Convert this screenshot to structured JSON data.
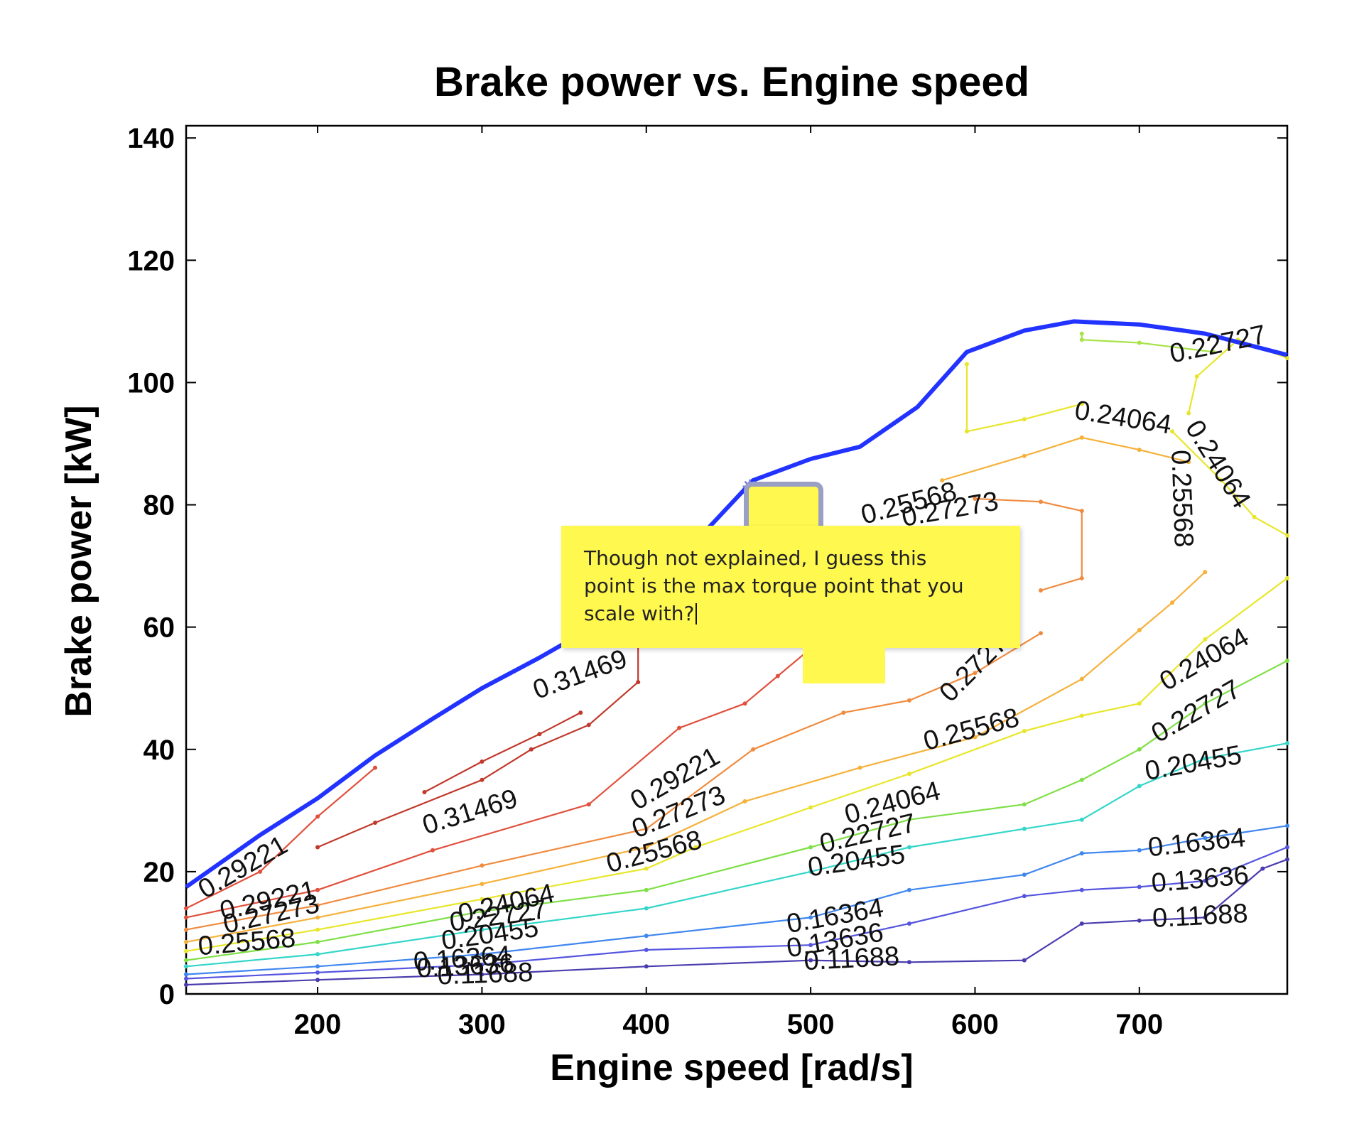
{
  "chart_data": {
    "type": "line",
    "title": "Brake power vs. Engine speed",
    "xlabel": "Engine speed [rad/s]",
    "ylabel": "Brake power [kW]",
    "xlim": [
      120,
      790
    ],
    "ylim": [
      0,
      142
    ],
    "xticks": [
      200,
      300,
      400,
      500,
      600,
      700
    ],
    "yticks": [
      0,
      20,
      40,
      60,
      80,
      100,
      120,
      140
    ],
    "grid": false,
    "legend": "none",
    "max_power_curve": {
      "color": "#2233ff",
      "x": [
        120,
        165,
        200,
        235,
        270,
        300,
        335,
        400,
        430,
        465,
        500,
        530,
        565,
        595,
        630,
        660,
        700,
        740,
        790
      ],
      "y": [
        17.5,
        26,
        32,
        39,
        45,
        50,
        55,
        65,
        74,
        84,
        87.5,
        89.5,
        96,
        105,
        108.5,
        110,
        109.5,
        108,
        104.5
      ]
    },
    "marked_point": {
      "x": 463,
      "y": 83,
      "color": "#7777ee"
    },
    "contours": [
      {
        "level": "0.11688",
        "color": "#4a3cae",
        "x": [
          120,
          200,
          300,
          400,
          500,
          560,
          630,
          665,
          700,
          740,
          775,
          790
        ],
        "y": [
          1.5,
          2.3,
          3.2,
          4.5,
          5.5,
          5.2,
          5.5,
          11.5,
          12,
          12.5,
          20.5,
          22
        ]
      },
      {
        "level": "0.13636",
        "color": "#5555e0",
        "x": [
          120,
          200,
          300,
          400,
          500,
          560,
          630,
          665,
          700,
          740,
          790
        ],
        "y": [
          2.5,
          3.5,
          4.8,
          7.2,
          8,
          11.5,
          16,
          17,
          17.5,
          18.5,
          24
        ]
      },
      {
        "level": "0.16364",
        "color": "#3f86ef",
        "x": [
          120,
          200,
          300,
          400,
          500,
          560,
          630,
          665,
          700,
          740,
          790
        ],
        "y": [
          3.2,
          4.5,
          6.5,
          9.5,
          12.5,
          17,
          19.5,
          23,
          23.5,
          25.5,
          27.5
        ]
      },
      {
        "level": "0.20455",
        "color": "#33d6c9",
        "x": [
          120,
          200,
          300,
          400,
          500,
          560,
          630,
          665,
          700,
          740,
          790
        ],
        "y": [
          4.5,
          6.5,
          10.5,
          14,
          20,
          24,
          27,
          28.5,
          34,
          38.5,
          41
        ]
      },
      {
        "level": "0.22727",
        "color": "#7fe046",
        "x": [
          120,
          200,
          300,
          400,
          500,
          560,
          630,
          665,
          700,
          740,
          790
        ],
        "y": [
          5.5,
          8.5,
          13.5,
          17,
          24,
          28.5,
          31,
          35,
          40,
          47.5,
          54.5
        ]
      },
      {
        "level": "0.24064",
        "color": "#e8e62a",
        "x": [
          120,
          200,
          300,
          400,
          430,
          500,
          560,
          630,
          665,
          700,
          740,
          790
        ],
        "y": [
          7,
          10.5,
          15.5,
          20.5,
          24,
          30.5,
          36,
          43,
          45.5,
          47.5,
          58,
          68
        ]
      },
      {
        "level": "0.25568",
        "color": "#f5b13a",
        "x": [
          120,
          200,
          300,
          400,
          460,
          530,
          600,
          665,
          700,
          720,
          740
        ],
        "y": [
          8.5,
          12.5,
          18,
          24,
          31.5,
          37,
          42,
          51.5,
          59.5,
          64,
          69
        ]
      },
      {
        "level": "0.27273",
        "color": "#f08b3f",
        "x": [
          120,
          200,
          300,
          400,
          465,
          520,
          560,
          600,
          640
        ],
        "y": [
          10.5,
          14.5,
          21,
          27,
          40,
          46,
          48,
          52.5,
          59
        ]
      },
      {
        "level": "0.29221",
        "color": "#e0503d",
        "x": [
          120,
          200,
          270,
          365,
          420,
          460,
          480,
          500
        ],
        "y": [
          12.5,
          17,
          23.5,
          31,
          43.5,
          47.5,
          52,
          56.5
        ]
      },
      {
        "level": "0.29221",
        "color": "#e0503d",
        "x": [
          120,
          165,
          200,
          235
        ],
        "y": [
          14,
          20,
          29,
          37
        ]
      },
      {
        "level": "0.31469",
        "color": "#c0392b",
        "x": [
          200,
          235,
          300,
          330,
          365,
          395,
          395
        ],
        "y": [
          24,
          28,
          35,
          40,
          44,
          51,
          60
        ]
      },
      {
        "level": "0.31469",
        "color": "#c0392b",
        "x": [
          265,
          300,
          335,
          360
        ],
        "y": [
          33,
          38,
          42.5,
          46
        ]
      },
      {
        "level": "0.27273",
        "color": "#f08b3f",
        "x": [
          600,
          640,
          665,
          665,
          640
        ],
        "y": [
          81,
          80.5,
          79,
          68,
          66
        ]
      },
      {
        "level": "0.25568",
        "color": "#f5b13a",
        "x": [
          580,
          630,
          665,
          700,
          730
        ],
        "y": [
          84,
          88,
          91,
          89,
          87
        ]
      },
      {
        "level": "0.24064",
        "color": "#e8e62a",
        "x": [
          595,
          595,
          630,
          665
        ],
        "y": [
          103,
          92,
          94,
          96.5
        ]
      },
      {
        "level": "0.22727",
        "color": "#a8e34a",
        "x": [
          665,
          665,
          700,
          745
        ],
        "y": [
          108,
          107,
          106.5,
          105
        ]
      },
      {
        "level": "0.24064",
        "color": "#e8e62a",
        "x": [
          720,
          750,
          770,
          790
        ],
        "y": [
          92,
          84,
          78,
          75
        ]
      },
      {
        "level": "0.24064",
        "color": "#e8e62a",
        "x": [
          730,
          735,
          760,
          790
        ],
        "y": [
          95,
          101,
          107,
          104
        ]
      }
    ],
    "contour_labels": [
      {
        "text": "0.29221",
        "x": 155,
        "y": 20.5,
        "angle": -30
      },
      {
        "text": "0.29221",
        "x": 170,
        "y": 15,
        "angle": -13
      },
      {
        "text": "0.27273",
        "x": 172,
        "y": 12.8,
        "angle": -13
      },
      {
        "text": "0.25568",
        "x": 157,
        "y": 8.2,
        "angle": -5
      },
      {
        "text": "0.31469",
        "x": 293,
        "y": 29.5,
        "angle": -17
      },
      {
        "text": "0.31469",
        "x": 360,
        "y": 52,
        "angle": -20
      },
      {
        "text": "0.29221",
        "x": 418,
        "y": 35,
        "angle": -30
      },
      {
        "text": "0.27273",
        "x": 420,
        "y": 29.5,
        "angle": -22
      },
      {
        "text": "0.25568",
        "x": 405,
        "y": 23,
        "angle": -15
      },
      {
        "text": "0.24064",
        "x": 315,
        "y": 14.5,
        "angle": -13
      },
      {
        "text": "0.22727",
        "x": 310,
        "y": 12.5,
        "angle": -8
      },
      {
        "text": "0.20455",
        "x": 305,
        "y": 9.5,
        "angle": -8
      },
      {
        "text": "0.16364",
        "x": 288,
        "y": 5.5,
        "angle": -4
      },
      {
        "text": "0.13636",
        "x": 290,
        "y": 4.3,
        "angle": -3
      },
      {
        "text": "0.11688",
        "x": 302,
        "y": 3,
        "angle": -2
      },
      {
        "text": "0.24064",
        "x": 550,
        "y": 31,
        "angle": -15
      },
      {
        "text": "0.22727",
        "x": 535,
        "y": 26,
        "angle": -13
      },
      {
        "text": "0.20455",
        "x": 528,
        "y": 21.5,
        "angle": -8
      },
      {
        "text": "0.16364",
        "x": 515,
        "y": 12.5,
        "angle": -10
      },
      {
        "text": "0.13636",
        "x": 515,
        "y": 8.5,
        "angle": -10
      },
      {
        "text": "0.11688",
        "x": 525,
        "y": 5.5,
        "angle": -3
      },
      {
        "text": "0.25568",
        "x": 598,
        "y": 43,
        "angle": -15
      },
      {
        "text": "0.27273",
        "x": 603,
        "y": 54,
        "angle": -45
      },
      {
        "text": "0.25568",
        "x": 560,
        "y": 80,
        "angle": -15
      },
      {
        "text": "0.27273",
        "x": 585,
        "y": 79,
        "angle": -10
      },
      {
        "text": "0.24064",
        "x": 690,
        "y": 94,
        "angle": 9
      },
      {
        "text": "0.24064",
        "x": 747,
        "y": 86.5,
        "angle": 58
      },
      {
        "text": "0.25568",
        "x": 725,
        "y": 81,
        "angle": 88
      },
      {
        "text": "0.22727",
        "x": 748,
        "y": 106,
        "angle": -12
      },
      {
        "text": "0.24064",
        "x": 740,
        "y": 54.5,
        "angle": -30
      },
      {
        "text": "0.22727",
        "x": 735,
        "y": 46,
        "angle": -30
      },
      {
        "text": "0.20455",
        "x": 733,
        "y": 37.5,
        "angle": -10
      },
      {
        "text": "0.16364",
        "x": 735,
        "y": 24.5,
        "angle": -6
      },
      {
        "text": "0.13636",
        "x": 737,
        "y": 18.5,
        "angle": -5
      },
      {
        "text": "0.11688",
        "x": 737,
        "y": 12.5,
        "angle": -3
      }
    ]
  },
  "sticky_note": {
    "text": "Though not explained, I guess this\npoint is the max torque point that you\nscale with?"
  }
}
